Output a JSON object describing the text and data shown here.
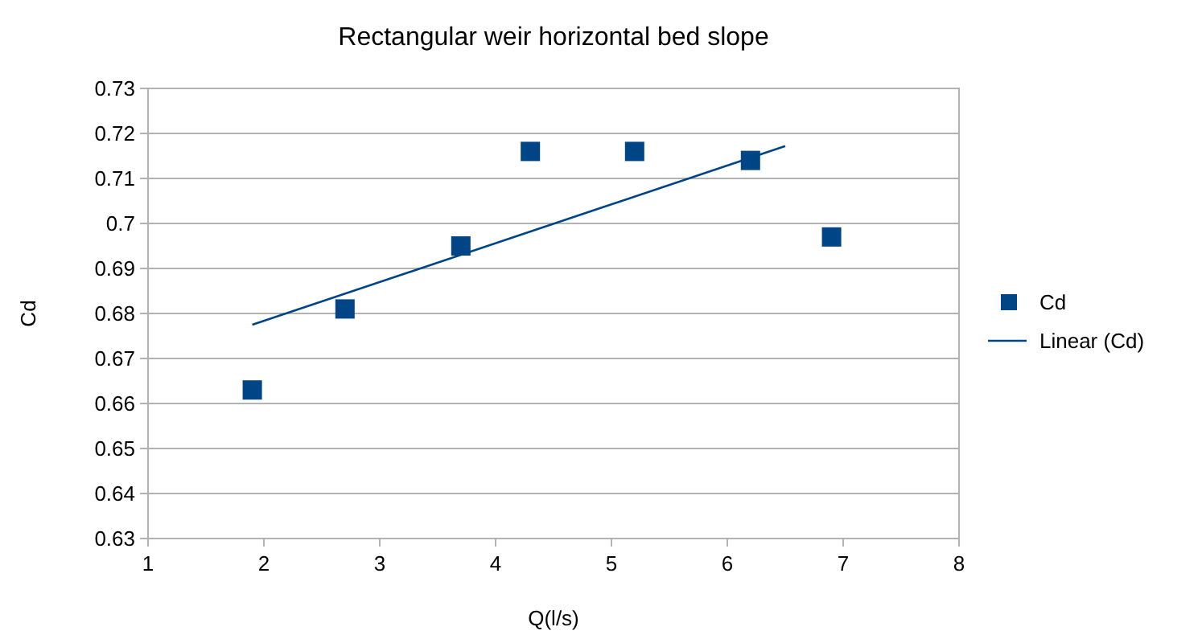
{
  "chart_data": {
    "type": "scatter",
    "title": "Rectangular weir horizontal bed slope",
    "xlabel": "Q(l/s)",
    "ylabel": "Cd",
    "xlim": [
      1,
      8
    ],
    "xticks": [
      1,
      2,
      3,
      4,
      5,
      6,
      7,
      8
    ],
    "ylim": [
      0.63,
      0.73
    ],
    "yticks": [
      0.63,
      0.64,
      0.65,
      0.66,
      0.67,
      0.68,
      0.69,
      0.7,
      0.71,
      0.72,
      0.73
    ],
    "grid": "y",
    "legend": "right",
    "series": [
      {
        "name": "Cd",
        "marker": "square",
        "color": "#004586",
        "x": [
          1.9,
          2.7,
          3.7,
          4.3,
          5.2,
          6.2,
          6.9
        ],
        "values": [
          0.663,
          0.681,
          0.695,
          0.716,
          0.716,
          0.714,
          0.697
        ]
      },
      {
        "name": "Linear (Cd)",
        "type": "line",
        "marker": "none",
        "line_style": "solid",
        "color": "#004586",
        "x": [
          1.9,
          6.5
        ],
        "values": [
          0.6775,
          0.7172
        ]
      }
    ]
  }
}
